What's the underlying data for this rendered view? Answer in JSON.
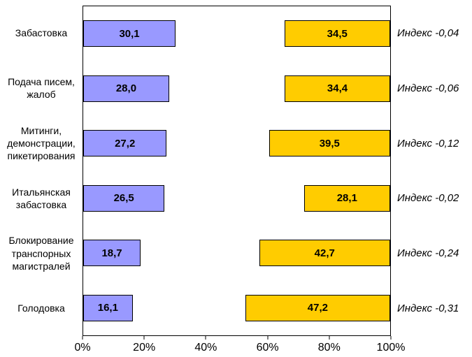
{
  "chart_data": {
    "type": "bar",
    "orientation": "horizontal",
    "title": "",
    "xlim": [
      0,
      100
    ],
    "x_ticks": [
      "0%",
      "20%",
      "40%",
      "60%",
      "80%",
      "100%"
    ],
    "grid": false,
    "legend": false,
    "series_meta": {
      "left": {
        "color": "#9999FF",
        "border": "#000000",
        "align": "left"
      },
      "right": {
        "color": "#FFCC00",
        "border": "#000000",
        "align": "right"
      }
    },
    "rows": [
      {
        "category": "Забастовка",
        "left_value": 30.1,
        "left_label": "30,1",
        "right_value": 34.5,
        "right_label": "34,5",
        "index_label": "Индекс -0,04"
      },
      {
        "category": "Подача писем,\nжалоб",
        "left_value": 28.0,
        "left_label": "28,0",
        "right_value": 34.4,
        "right_label": "34,4",
        "index_label": "Индекс -0,06"
      },
      {
        "category": "Митинги,\nдемонстрации,\nпикетирования",
        "left_value": 27.2,
        "left_label": "27,2",
        "right_value": 39.5,
        "right_label": "39,5",
        "index_label": "Индекс -0,12"
      },
      {
        "category": "Итальянская\nзабастовка",
        "left_value": 26.5,
        "left_label": "26,5",
        "right_value": 28.1,
        "right_label": "28,1",
        "index_label": "Индекс -0,02"
      },
      {
        "category": "Блокирование\nтранспорных\nмагистралей",
        "left_value": 18.7,
        "left_label": "18,7",
        "right_value": 42.7,
        "right_label": "42,7",
        "index_label": "Индекс -0,24"
      },
      {
        "category": "Голодовка",
        "left_value": 16.1,
        "left_label": "16,1",
        "right_value": 47.2,
        "right_label": "47,2",
        "index_label": "Индекс -0,31"
      }
    ]
  }
}
